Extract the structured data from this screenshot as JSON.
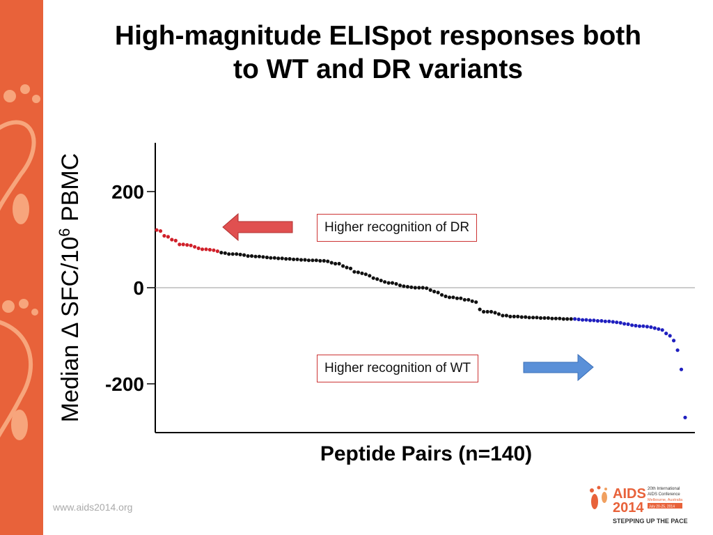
{
  "slide": {
    "title_line1": "High-magnitude ELISpot responses both",
    "title_line2": "to WT and DR variants",
    "footer_url": "www.aids2014.org",
    "callout_dr": "Higher recognition of DR",
    "callout_wt": "Higher recognition of WT",
    "logo": {
      "name": "AIDS",
      "year": "2014",
      "conference_line1": "20th International",
      "conference_line2": "AIDS Conference",
      "location": "Melbourne, Australia",
      "dates": "July 20-25, 2014",
      "tagline": "STEPPING UP THE PACE"
    },
    "colors": {
      "sidebar": "#e8623a",
      "dr_points": "#d0202a",
      "neutral_points": "#111111",
      "wt_points": "#1f1fbf",
      "arrow_dr": "#e05050",
      "arrow_wt": "#5a90d8"
    }
  },
  "chart_data": {
    "type": "scatter",
    "title": "",
    "xlabel": "Peptide Pairs (n=140)",
    "ylabel_prefix": "Median Δ  SFC/10",
    "ylabel_sup": "6",
    "ylabel_suffix": " PBMC",
    "yticks": [
      200,
      0,
      -200
    ],
    "ytick_labels": [
      "200",
      "0",
      "-200"
    ],
    "ylim": [
      -300,
      300
    ],
    "xlim": [
      0,
      140
    ],
    "zero_line": true,
    "grid": false,
    "series": [
      {
        "group": "dr",
        "x": [
          1,
          2,
          3,
          4,
          5,
          6,
          7,
          8,
          9,
          10,
          11,
          12,
          13,
          14,
          15,
          16,
          17
        ],
        "values": [
          120,
          118,
          108,
          106,
          100,
          98,
          90,
          90,
          89,
          88,
          85,
          82,
          80,
          80,
          79,
          78,
          76
        ]
      },
      {
        "group": "neutral",
        "x": [
          18,
          19,
          20,
          21,
          22,
          23,
          24,
          25,
          26,
          27,
          28,
          29,
          30,
          31,
          32,
          33,
          34,
          35,
          36,
          37,
          38,
          39,
          40,
          41,
          42,
          43,
          44,
          45,
          46,
          47,
          48,
          49,
          50,
          51,
          52,
          53,
          54,
          55,
          56,
          57,
          58,
          59,
          60,
          61,
          62,
          63,
          64,
          65,
          66,
          67,
          68,
          69,
          70,
          71,
          72,
          73,
          74,
          75,
          76,
          77,
          78,
          79,
          80,
          81,
          82,
          83,
          84,
          85,
          86,
          87,
          88,
          89,
          90,
          91,
          92,
          93,
          94,
          95,
          96,
          97,
          98,
          99,
          100,
          101,
          102,
          103,
          104,
          105,
          106,
          107,
          108,
          109,
          110
        ],
        "values": [
          73,
          72,
          70,
          70,
          70,
          69,
          68,
          66,
          66,
          65,
          65,
          64,
          63,
          62,
          62,
          61,
          61,
          60,
          60,
          59,
          59,
          58,
          58,
          57,
          57,
          57,
          56,
          56,
          55,
          52,
          50,
          50,
          45,
          42,
          40,
          33,
          32,
          30,
          28,
          25,
          20,
          18,
          15,
          12,
          10,
          10,
          8,
          5,
          3,
          2,
          1,
          0,
          0,
          0,
          -1,
          -5,
          -8,
          -10,
          -15,
          -18,
          -20,
          -20,
          -22,
          -22,
          -25,
          -25,
          -28,
          -30,
          -45,
          -50,
          -50,
          -50,
          -52,
          -55,
          -58,
          -58,
          -60,
          -60,
          -60,
          -61,
          -61,
          -62,
          -62,
          -62,
          -63,
          -63,
          -63,
          -64,
          -64,
          -64,
          -65,
          -65,
          -65
        ]
      },
      {
        "group": "wt",
        "x": [
          111,
          112,
          113,
          114,
          115,
          116,
          117,
          118,
          119,
          120,
          121,
          122,
          123,
          124,
          125,
          126,
          127,
          128,
          129,
          130,
          131,
          132,
          133,
          134,
          135,
          136,
          137,
          138,
          139,
          140
        ],
        "values": [
          -65,
          -66,
          -67,
          -67,
          -68,
          -68,
          -69,
          -69,
          -70,
          -70,
          -71,
          -72,
          -73,
          -75,
          -76,
          -78,
          -79,
          -80,
          -80,
          -81,
          -82,
          -84,
          -86,
          -88,
          -95,
          -100,
          -110,
          -130,
          -170,
          -270
        ]
      }
    ]
  }
}
